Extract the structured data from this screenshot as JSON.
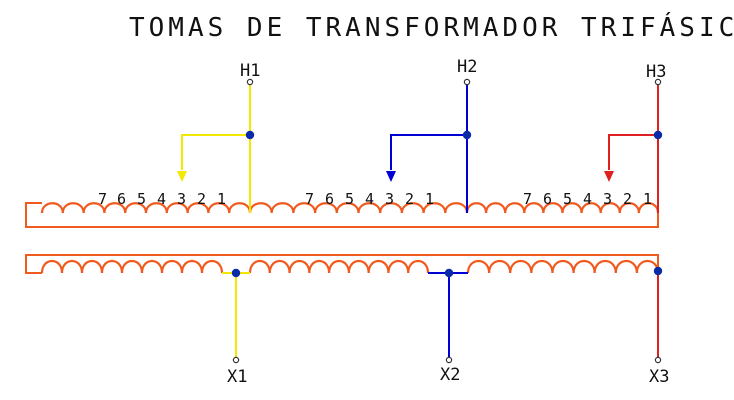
{
  "title": "TOMAS DE TRANSFORMADOR TRIFÁSICO",
  "primary_terminals": [
    "H1",
    "H2",
    "H3"
  ],
  "secondary_terminals": [
    "X1",
    "X2",
    "X3"
  ],
  "tap_numbers": [
    "7",
    "6",
    "5",
    "4",
    "3",
    "2",
    "1"
  ],
  "colors": {
    "phase_1": "#f5e800",
    "phase_2": "#0000d4",
    "phase_3": "#e02020",
    "coil": "#f05a1e",
    "node": "#0b2aa8",
    "text": "#111111",
    "background": "#ffffff"
  }
}
